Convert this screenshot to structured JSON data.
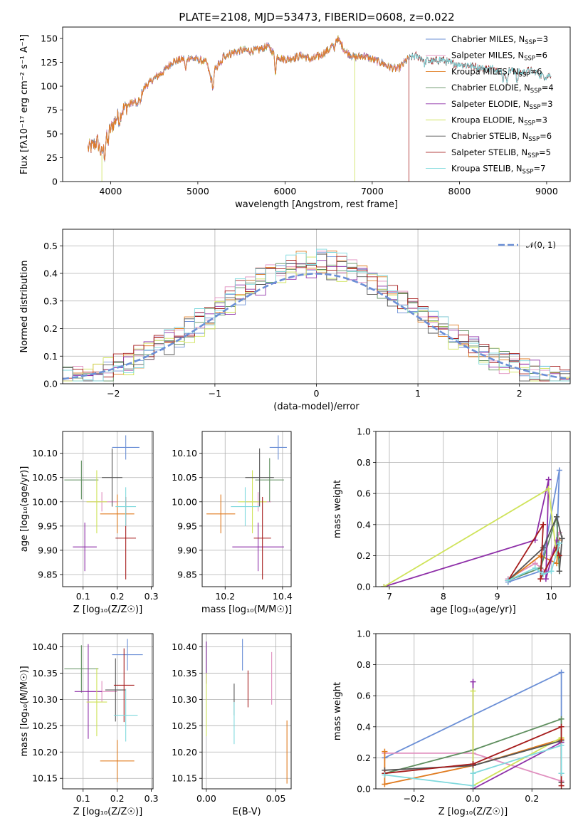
{
  "figure": {
    "title": "PLATE=2108, MJD=53473, FIBERID=0608, z=0.022",
    "colors": {
      "Chabrier MILES": "#6b8fd6",
      "Salpeter MILES": "#e08fbf",
      "Kroupa MILES": "#e07b1f",
      "Chabrier ELODIE": "#5f8f5f",
      "Salpeter ELODIE": "#8e2fa8",
      "Kroupa ELODIE": "#cfe35a",
      "Chabrier STELIB": "#555555",
      "Salpeter STELIB": "#a61c1c",
      "Kroupa STELIB": "#7fd9dd"
    }
  },
  "chart_data": [
    {
      "id": "spectrum",
      "type": "line",
      "xlabel": "wavelength [Angstrom, rest frame]",
      "ylabel": "Flux [fλ10⁻¹⁷ erg cm⁻² s⁻¹ A⁻¹]",
      "xlim": [
        3450,
        9270
      ],
      "ylim": [
        0,
        162
      ],
      "xticks": [
        4000,
        5000,
        6000,
        7000,
        8000,
        9000
      ],
      "yticks": [
        0,
        25,
        50,
        75,
        100,
        125,
        150
      ],
      "legend_position": "top-right",
      "legend": [
        {
          "label": "Chabrier MILES, N",
          "sub": "SSP",
          "suffix": "=3",
          "model": "Chabrier MILES"
        },
        {
          "label": "Salpeter MILES, N",
          "sub": "SSP",
          "suffix": "=6",
          "model": "Salpeter MILES"
        },
        {
          "label": "Kroupa MILES, N",
          "sub": "SSP",
          "suffix": "=6",
          "model": "Kroupa MILES"
        },
        {
          "label": "Chabrier ELODIE, N",
          "sub": "SSP",
          "suffix": "=4",
          "model": "Chabrier ELODIE"
        },
        {
          "label": "Salpeter ELODIE, N",
          "sub": "SSP",
          "suffix": "=3",
          "model": "Salpeter ELODIE"
        },
        {
          "label": "Kroupa ELODIE, N",
          "sub": "SSP",
          "suffix": "=3",
          "model": "Kroupa ELODIE"
        },
        {
          "label": "Chabrier STELIB, N",
          "sub": "SSP",
          "suffix": "=6",
          "model": "Chabrier STELIB"
        },
        {
          "label": "Salpeter STELIB, N",
          "sub": "SSP",
          "suffix": "=5",
          "model": "Salpeter STELIB"
        },
        {
          "label": "Kroupa STELIB, N",
          "sub": "SSP",
          "suffix": "=7",
          "model": "Kroupa STELIB"
        }
      ],
      "continuum": [
        [
          3740,
          35
        ],
        [
          3800,
          38
        ],
        [
          3850,
          42
        ],
        [
          3900,
          28
        ],
        [
          3950,
          50
        ],
        [
          4000,
          55
        ],
        [
          4100,
          72
        ],
        [
          4200,
          80
        ],
        [
          4300,
          85
        ],
        [
          4400,
          100
        ],
        [
          4500,
          108
        ],
        [
          4600,
          115
        ],
        [
          4700,
          125
        ],
        [
          4800,
          128
        ],
        [
          4900,
          130
        ],
        [
          5000,
          128
        ],
        [
          5100,
          125
        ],
        [
          5150,
          108
        ],
        [
          5200,
          118
        ],
        [
          5300,
          132
        ],
        [
          5400,
          135
        ],
        [
          5500,
          138
        ],
        [
          5600,
          137
        ],
        [
          5700,
          138
        ],
        [
          5800,
          142
        ],
        [
          5900,
          132
        ],
        [
          6000,
          128
        ],
        [
          6100,
          130
        ],
        [
          6200,
          132
        ],
        [
          6300,
          128
        ],
        [
          6400,
          132
        ],
        [
          6500,
          138
        ],
        [
          6600,
          150
        ],
        [
          6700,
          136
        ],
        [
          6800,
          130
        ],
        [
          6900,
          132
        ],
        [
          7000,
          128
        ],
        [
          7100,
          125
        ],
        [
          7200,
          120
        ],
        [
          7300,
          118
        ],
        [
          7400,
          128
        ],
        [
          7500,
          132
        ],
        [
          7600,
          128
        ],
        [
          7700,
          126
        ],
        [
          7800,
          128
        ],
        [
          7900,
          124
        ],
        [
          8000,
          123
        ],
        [
          8100,
          122
        ],
        [
          8200,
          120
        ],
        [
          8300,
          118
        ],
        [
          8400,
          119
        ],
        [
          8500,
          115
        ],
        [
          8600,
          117
        ],
        [
          8700,
          114
        ],
        [
          8800,
          117
        ],
        [
          8900,
          113
        ],
        [
          9000,
          110
        ],
        [
          9050,
          112
        ]
      ],
      "absorption": [
        [
          3934,
          -15
        ],
        [
          3968,
          -12
        ],
        [
          4102,
          -8
        ],
        [
          4304,
          -8
        ],
        [
          4340,
          -10
        ],
        [
          4861,
          -12
        ],
        [
          5175,
          -16
        ],
        [
          5270,
          -6
        ],
        [
          5890,
          -18
        ],
        [
          6563,
          -8
        ],
        [
          7600,
          -6
        ],
        [
          8498,
          -10
        ],
        [
          8542,
          -14
        ],
        [
          8662,
          -12
        ]
      ],
      "drops": [
        {
          "model": "Kroupa ELODIE",
          "x": 6800
        },
        {
          "model": "Salpeter STELIB",
          "x": 7420
        },
        {
          "model": "Kroupa ELODIE",
          "x": 3900
        }
      ]
    },
    {
      "id": "residuals",
      "type": "histogram",
      "xlabel": "(data-model)/error",
      "ylabel": "Normed distribution",
      "xlim": [
        -2.5,
        2.5
      ],
      "ylim": [
        0,
        0.56
      ],
      "xticks": [
        -2,
        -1,
        0,
        1,
        2
      ],
      "yticks": [
        0.0,
        0.1,
        0.2,
        0.3,
        0.4,
        0.5
      ],
      "grid": true,
      "legend_position": "top-right",
      "legend_label": "𝒩(0, 1)",
      "bin_width": 0.1,
      "reference_curve": "gaussian(0,1)"
    },
    {
      "id": "age-vs-Z",
      "type": "errorbar",
      "xlabel": "Z [log₁₀(Z/Z☉)]",
      "ylabel": "age  [log₁₀(age/yr)]",
      "xlim": [
        0.04,
        0.305
      ],
      "ylim": [
        9.825,
        10.145
      ],
      "xticks": [
        0.1,
        0.2,
        0.3
      ],
      "yticks": [
        9.85,
        9.9,
        9.95,
        10.0,
        10.05,
        10.1
      ],
      "grid": true,
      "points": [
        {
          "model": "Chabrier MILES",
          "x": 0.225,
          "y": 10.112,
          "xerr": 0.04,
          "yerr": 0.025
        },
        {
          "model": "Salpeter MILES",
          "x": 0.155,
          "y": 10.0,
          "xerr": 0.045,
          "yerr": 0.02
        },
        {
          "model": "Kroupa MILES",
          "x": 0.2,
          "y": 9.975,
          "xerr": 0.05,
          "yerr": 0.04
        },
        {
          "model": "Chabrier ELODIE",
          "x": 0.095,
          "y": 10.045,
          "xerr": 0.05,
          "yerr": 0.04
        },
        {
          "model": "Salpeter ELODIE",
          "x": 0.105,
          "y": 9.907,
          "xerr": 0.035,
          "yerr": 0.05
        },
        {
          "model": "Kroupa ELODIE",
          "x": 0.14,
          "y": 10.0,
          "xerr": 0.03,
          "yerr": 0.065
        },
        {
          "model": "Chabrier STELIB",
          "x": 0.185,
          "y": 10.05,
          "xerr": 0.03,
          "yerr": 0.06
        },
        {
          "model": "Salpeter STELIB",
          "x": 0.225,
          "y": 9.925,
          "xerr": 0.03,
          "yerr": 0.085
        },
        {
          "model": "Kroupa STELIB",
          "x": 0.225,
          "y": 9.99,
          "xerr": 0.03,
          "yerr": 0.04
        }
      ]
    },
    {
      "id": "age-vs-mass",
      "type": "errorbar",
      "xlabel": "mass [log₁₀(M/M☉)]",
      "ylabel": "",
      "xlim": [
        10.12,
        10.43
      ],
      "ylim": [
        9.825,
        10.145
      ],
      "xticks": [
        10.2,
        10.4
      ],
      "yticks": [
        9.85,
        9.9,
        9.95,
        10.0,
        10.05,
        10.1
      ],
      "grid": true,
      "points": [
        {
          "model": "Chabrier MILES",
          "x": 10.385,
          "y": 10.112,
          "xerr": 0.03,
          "yerr": 0.025
        },
        {
          "model": "Salpeter MILES",
          "x": 10.315,
          "y": 10.0,
          "xerr": 0.045,
          "yerr": 0.02
        },
        {
          "model": "Kroupa MILES",
          "x": 10.185,
          "y": 9.975,
          "xerr": 0.05,
          "yerr": 0.04
        },
        {
          "model": "Chabrier ELODIE",
          "x": 10.355,
          "y": 10.045,
          "xerr": 0.05,
          "yerr": 0.045
        },
        {
          "model": "Salpeter ELODIE",
          "x": 10.315,
          "y": 9.907,
          "xerr": 0.09,
          "yerr": 0.05
        },
        {
          "model": "Kroupa ELODIE",
          "x": 10.295,
          "y": 10.0,
          "xerr": 0.05,
          "yerr": 0.065
        },
        {
          "model": "Chabrier STELIB",
          "x": 10.32,
          "y": 10.05,
          "xerr": 0.05,
          "yerr": 0.06
        },
        {
          "model": "Salpeter STELIB",
          "x": 10.33,
          "y": 9.925,
          "xerr": 0.03,
          "yerr": 0.085
        },
        {
          "model": "Kroupa STELIB",
          "x": 10.27,
          "y": 9.99,
          "xerr": 0.05,
          "yerr": 0.04
        }
      ]
    },
    {
      "id": "weight-vs-age",
      "type": "line",
      "xlabel": "age  [log₁₀(age/yr)]",
      "ylabel": "mass weight",
      "xlim": [
        6.75,
        10.35
      ],
      "ylim": [
        0,
        1.0
      ],
      "xticks": [
        7,
        8,
        9,
        10
      ],
      "yticks": [
        0.0,
        0.2,
        0.4,
        0.6,
        0.8,
        1.0
      ],
      "grid": true,
      "series": [
        {
          "model": "Chabrier MILES",
          "x": [
            9.2,
            9.8,
            10.15,
            10.1
          ],
          "y": [
            0.03,
            0.1,
            0.75,
            0.25
          ]
        },
        {
          "model": "Salpeter MILES",
          "x": [
            9.2,
            9.7,
            9.9,
            10.15
          ],
          "y": [
            0.05,
            0.15,
            0.1,
            0.35
          ]
        },
        {
          "model": "Kroupa MILES",
          "x": [
            9.2,
            9.8,
            10.1,
            10.15
          ],
          "y": [
            0.04,
            0.2,
            0.15,
            0.3
          ]
        },
        {
          "model": "Chabrier ELODIE",
          "x": [
            9.2,
            9.8,
            10.1,
            10.15
          ],
          "y": [
            0.04,
            0.12,
            0.45,
            0.1
          ]
        },
        {
          "model": "Salpeter ELODIE",
          "x": [
            6.9,
            9.7,
            9.95,
            9.9,
            10.1
          ],
          "y": [
            0.0,
            0.3,
            0.69,
            0.05,
            0.3
          ]
        },
        {
          "model": "Kroupa ELODIE",
          "x": [
            6.9,
            9.95,
            10.1
          ],
          "y": [
            0.0,
            0.63,
            0.2
          ]
        },
        {
          "model": "Chabrier STELIB",
          "x": [
            9.2,
            9.85,
            10.1,
            10.2,
            10.15
          ],
          "y": [
            0.04,
            0.25,
            0.45,
            0.31,
            0.1
          ]
        },
        {
          "model": "Salpeter STELIB",
          "x": [
            9.2,
            9.85,
            9.8,
            10.1,
            10.15
          ],
          "y": [
            0.04,
            0.4,
            0.05,
            0.25,
            0.2
          ]
        },
        {
          "model": "Kroupa STELIB",
          "x": [
            9.2,
            9.7,
            9.85,
            10.0,
            10.15
          ],
          "y": [
            0.04,
            0.12,
            0.08,
            0.1,
            0.28
          ]
        }
      ]
    },
    {
      "id": "mass-vs-Z",
      "type": "errorbar",
      "xlabel": "Z [log₁₀(Z/Z☉)]",
      "ylabel": "mass [log₁₀(M/M☉)]",
      "xlim": [
        0.04,
        0.305
      ],
      "ylim": [
        10.13,
        10.425
      ],
      "xticks": [
        0.1,
        0.2,
        0.3
      ],
      "yticks": [
        10.15,
        10.2,
        10.25,
        10.3,
        10.35,
        10.4
      ],
      "grid": true,
      "points": [
        {
          "model": "Chabrier MILES",
          "x": 0.23,
          "y": 10.385,
          "xerr": 0.045,
          "yerr": 0.03
        },
        {
          "model": "Salpeter MILES",
          "x": 0.155,
          "y": 10.315,
          "xerr": 0.045,
          "yerr": 0.02
        },
        {
          "model": "Kroupa MILES",
          "x": 0.2,
          "y": 10.183,
          "xerr": 0.05,
          "yerr": 0.04
        },
        {
          "model": "Chabrier ELODIE",
          "x": 0.095,
          "y": 10.358,
          "xerr": 0.05,
          "yerr": 0.045
        },
        {
          "model": "Salpeter ELODIE",
          "x": 0.115,
          "y": 10.315,
          "xerr": 0.04,
          "yerr": 0.09
        },
        {
          "model": "Kroupa ELODIE",
          "x": 0.14,
          "y": 10.295,
          "xerr": 0.03,
          "yerr": 0.065
        },
        {
          "model": "Chabrier STELIB",
          "x": 0.195,
          "y": 10.318,
          "xerr": 0.03,
          "yerr": 0.06
        },
        {
          "model": "Salpeter STELIB",
          "x": 0.22,
          "y": 10.327,
          "xerr": 0.03,
          "yerr": 0.07
        },
        {
          "model": "Kroupa STELIB",
          "x": 0.225,
          "y": 10.27,
          "xerr": 0.035,
          "yerr": 0.05
        }
      ]
    },
    {
      "id": "mass-vs-EBV",
      "type": "errorbar",
      "xlabel": "E(B-V)",
      "ylabel": "",
      "xlim": [
        -0.003,
        0.061
      ],
      "ylim": [
        10.13,
        10.425
      ],
      "xticks": [
        0.0,
        0.05
      ],
      "yticks": [
        10.15,
        10.2,
        10.25,
        10.3,
        10.35,
        10.4
      ],
      "grid": true,
      "points": [
        {
          "model": "Chabrier MILES",
          "x": 0.026,
          "y": 10.385,
          "xerr": 0,
          "yerr": 0.03
        },
        {
          "model": "Salpeter MILES",
          "x": 0.047,
          "y": 10.34,
          "xerr": 0,
          "yerr": 0.05
        },
        {
          "model": "Kroupa MILES",
          "x": 0.058,
          "y": 10.2,
          "xerr": 0,
          "yerr": 0.06
        },
        {
          "model": "Chabrier ELODIE",
          "x": 0.0,
          "y": 10.38,
          "xerr": 0,
          "yerr": 0.03
        },
        {
          "model": "Salpeter ELODIE",
          "x": 0.0,
          "y": 10.37,
          "xerr": 0,
          "yerr": 0.04
        },
        {
          "model": "Kroupa ELODIE",
          "x": 0.0,
          "y": 10.29,
          "xerr": 0,
          "yerr": 0.06
        },
        {
          "model": "Chabrier STELIB",
          "x": 0.02,
          "y": 10.3,
          "xerr": 0,
          "yerr": 0.03
        },
        {
          "model": "Salpeter STELIB",
          "x": 0.03,
          "y": 10.32,
          "xerr": 0,
          "yerr": 0.035
        },
        {
          "model": "Kroupa STELIB",
          "x": 0.02,
          "y": 10.255,
          "xerr": 0,
          "yerr": 0.04
        }
      ]
    },
    {
      "id": "weight-vs-Z",
      "type": "line",
      "xlabel": "Z [log₁₀(Z/Z☉)]",
      "ylabel": "mass weight",
      "xlim": [
        -0.33,
        0.33
      ],
      "ylim": [
        0,
        1.0
      ],
      "xticks": [
        -0.2,
        0.0,
        0.2
      ],
      "yticks": [
        0.0,
        0.2,
        0.4,
        0.6,
        0.8,
        1.0
      ],
      "grid": true,
      "series": [
        {
          "model": "Chabrier MILES",
          "x": [
            -0.3,
            0.3,
            0.3
          ],
          "y": [
            0.2,
            0.75,
            0.3
          ]
        },
        {
          "model": "Salpeter MILES",
          "x": [
            -0.3,
            0.0,
            0.3
          ],
          "y": [
            0.23,
            0.23,
            0.05
          ]
        },
        {
          "model": "Kroupa MILES",
          "x": [
            -0.3,
            -0.3,
            0.0,
            0.3
          ],
          "y": [
            0.24,
            0.03,
            0.15,
            0.32
          ]
        },
        {
          "model": "Chabrier ELODIE",
          "x": [
            -0.3,
            0.0,
            0.3,
            0.3
          ],
          "y": [
            0.1,
            0.25,
            0.45,
            0.1
          ]
        },
        {
          "model": "Salpeter ELODIE",
          "x": [
            0.0,
            0.0,
            0.3
          ],
          "y": [
            0.69,
            0.0,
            0.3
          ]
        },
        {
          "model": "Kroupa ELODIE",
          "x": [
            0.0,
            0.0,
            0.3
          ],
          "y": [
            0.63,
            0.02,
            0.33
          ]
        },
        {
          "model": "Chabrier STELIB",
          "x": [
            -0.3,
            0.0,
            0.3,
            0.3
          ],
          "y": [
            0.12,
            0.15,
            0.31,
            0.04
          ]
        },
        {
          "model": "Salpeter STELIB",
          "x": [
            -0.3,
            0.0,
            0.3,
            0.3
          ],
          "y": [
            0.1,
            0.16,
            0.4,
            0.02
          ]
        },
        {
          "model": "Kroupa STELIB",
          "x": [
            -0.3,
            0.0,
            0.0,
            0.3,
            0.3
          ],
          "y": [
            0.09,
            0.02,
            0.1,
            0.28,
            0.1
          ]
        }
      ]
    }
  ]
}
